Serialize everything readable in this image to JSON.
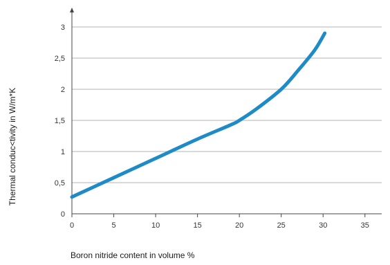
{
  "chart_data": {
    "type": "line",
    "title": "",
    "xlabel": "Boron nitride content in volume %",
    "ylabel": "Thermal conduc<tivity in W/m*K",
    "xlim": [
      0,
      37
    ],
    "ylim": [
      0,
      3.3
    ],
    "x_ticks": [
      0,
      5,
      10,
      15,
      20,
      25,
      30,
      35
    ],
    "x_tick_labels": [
      "0",
      "5",
      "10",
      "15",
      "20",
      "25",
      "30",
      "35"
    ],
    "y_ticks": [
      0,
      0.5,
      1,
      1.5,
      2,
      2.5,
      3
    ],
    "y_tick_labels": [
      "0",
      "0,5",
      "1",
      "1,5",
      "2",
      "2,5",
      "3"
    ],
    "grid": "horizontal",
    "series": [
      {
        "color": "#1f8bc6",
        "x": [
          0,
          5,
          10,
          15,
          19,
          20,
          22,
          25,
          27,
          29,
          30.2
        ],
        "y": [
          0.27,
          0.58,
          0.89,
          1.2,
          1.43,
          1.5,
          1.68,
          2.0,
          2.3,
          2.63,
          2.9
        ]
      }
    ]
  }
}
